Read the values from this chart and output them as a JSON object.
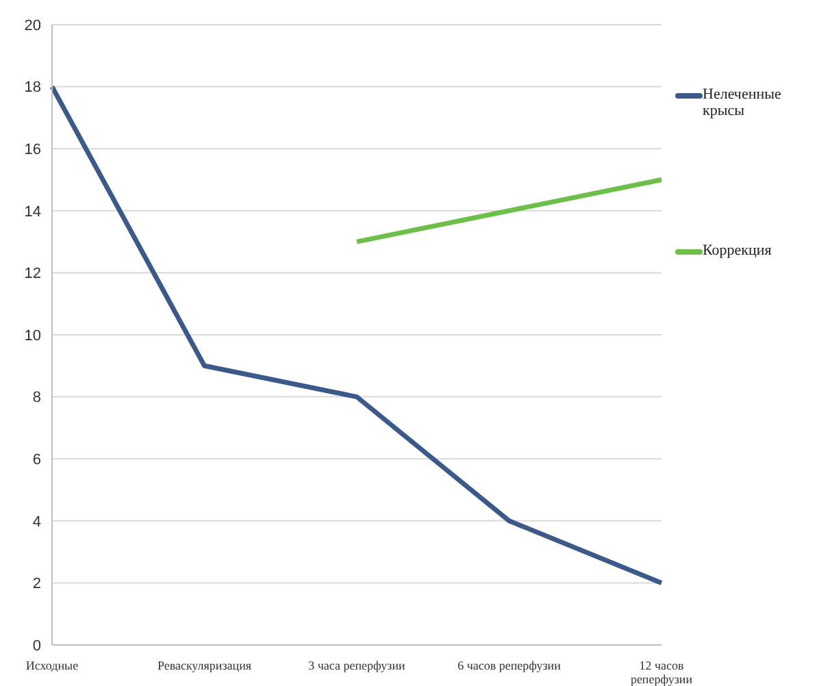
{
  "chart_data": {
    "type": "line",
    "categories": [
      "Исходные",
      "Реваскуляризация",
      "3 часа реперфузии",
      "6 часов реперфузии",
      "12 часов реперфузии"
    ],
    "series": [
      {
        "name": "Нелеченные крысы",
        "color": "#3b5a8a",
        "values": [
          18,
          9,
          8,
          4,
          2
        ]
      },
      {
        "name": "Коррекция",
        "color": "#6cc04a",
        "values": [
          null,
          null,
          13,
          14,
          15
        ]
      }
    ],
    "ylim": [
      0,
      20
    ],
    "yticks": [
      0,
      2,
      4,
      6,
      8,
      10,
      12,
      14,
      16,
      18,
      20
    ],
    "grid": "y",
    "legend": "right",
    "marker": "none",
    "line_style": "solid"
  }
}
